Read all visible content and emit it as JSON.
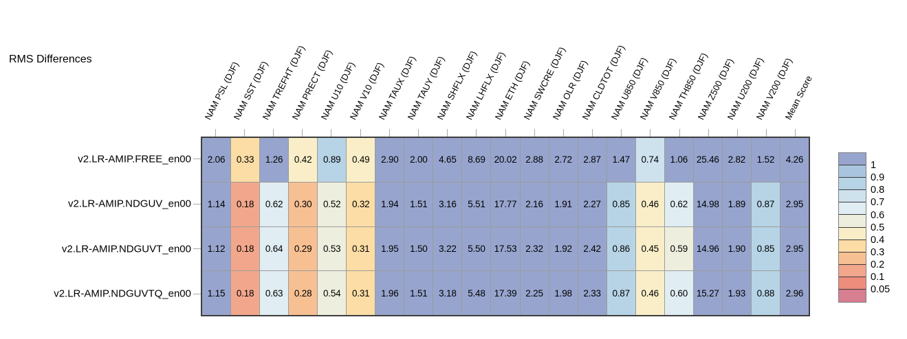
{
  "title": "RMS Differences",
  "chart_data": {
    "type": "heatmap",
    "columns": [
      "NAM PSL (DJF)",
      "NAM SST (DJF)",
      "NAM TREFHT (DJF)",
      "NAM PRECT (DJF)",
      "NAM U10 (DJF)",
      "NAM V10 (DJF)",
      "NAM TAUX (DJF)",
      "NAM TAUY (DJF)",
      "NAM SHFLX (DJF)",
      "NAM LHFLX (DJF)",
      "NAM ETH (DJF)",
      "NAM SWCRE (DJF)",
      "NAM OLR (DJF)",
      "NAM CLDTOT (DJF)",
      "NAM U850 (DJF)",
      "NAM V850 (DJF)",
      "NAM TH850 (DJF)",
      "NAM Z500 (DJF)",
      "NAM U200 (DJF)",
      "NAM V200 (DJF)",
      "Mean Score"
    ],
    "rows": [
      {
        "name": "v2.LR-AMIP.FREE_en00",
        "values": [
          "2.06",
          "0.33",
          "1.26",
          "0.42",
          "0.89",
          "0.49",
          "2.90",
          "2.00",
          "4.65",
          "8.69",
          "20.02",
          "2.88",
          "2.72",
          "2.87",
          "1.47",
          "0.74",
          "1.06",
          "25.46",
          "2.82",
          "1.52",
          "4.26"
        ],
        "buckets": [
          0,
          7,
          0,
          6,
          2,
          6,
          0,
          0,
          0,
          0,
          0,
          0,
          0,
          0,
          0,
          3,
          0,
          0,
          0,
          0,
          0
        ]
      },
      {
        "name": "v2.LR-AMIP.NDGUV_en00",
        "values": [
          "1.14",
          "0.18",
          "0.62",
          "0.30",
          "0.52",
          "0.32",
          "1.94",
          "1.51",
          "3.16",
          "5.51",
          "17.77",
          "2.16",
          "1.91",
          "2.27",
          "0.85",
          "0.46",
          "0.62",
          "14.98",
          "1.89",
          "0.87",
          "2.95"
        ],
        "buckets": [
          0,
          9,
          4,
          8,
          5,
          7,
          0,
          0,
          0,
          0,
          0,
          0,
          0,
          0,
          2,
          6,
          4,
          0,
          0,
          2,
          0
        ]
      },
      {
        "name": "v2.LR-AMIP.NDGUVT_en00",
        "values": [
          "1.12",
          "0.18",
          "0.64",
          "0.29",
          "0.53",
          "0.31",
          "1.95",
          "1.50",
          "3.22",
          "5.50",
          "17.53",
          "2.32",
          "1.92",
          "2.42",
          "0.86",
          "0.45",
          "0.59",
          "14.96",
          "1.90",
          "0.85",
          "2.95"
        ],
        "buckets": [
          0,
          9,
          4,
          8,
          5,
          7,
          0,
          0,
          0,
          0,
          0,
          0,
          0,
          0,
          2,
          6,
          5,
          0,
          0,
          2,
          0
        ]
      },
      {
        "name": "v2.LR-AMIP.NDGUVTQ_en00",
        "values": [
          "1.15",
          "0.18",
          "0.63",
          "0.28",
          "0.54",
          "0.31",
          "1.96",
          "1.51",
          "3.18",
          "5.48",
          "17.39",
          "2.25",
          "1.98",
          "2.33",
          "0.87",
          "0.46",
          "0.60",
          "15.27",
          "1.93",
          "0.88",
          "2.96"
        ],
        "buckets": [
          0,
          9,
          4,
          8,
          5,
          7,
          0,
          0,
          0,
          0,
          0,
          0,
          0,
          0,
          2,
          6,
          4,
          0,
          0,
          2,
          0
        ]
      }
    ],
    "legend": {
      "tick_labels": [
        "1",
        "0.9",
        "0.8",
        "0.7",
        "0.6",
        "0.5",
        "0.4",
        "0.3",
        "0.2",
        "0.1",
        "0.05"
      ],
      "palette": [
        "#97a5ce",
        "#a9c4de",
        "#b7d4e6",
        "#cee2ee",
        "#e0edf3",
        "#edeedd",
        "#f9eec8",
        "#fbdda5",
        "#f7c093",
        "#f2a78c",
        "#ee8d7b",
        "#d77e90"
      ]
    },
    "layout_hints": {
      "legend_position": "right",
      "column_labels_rotated": true,
      "grid_on": true
    }
  }
}
